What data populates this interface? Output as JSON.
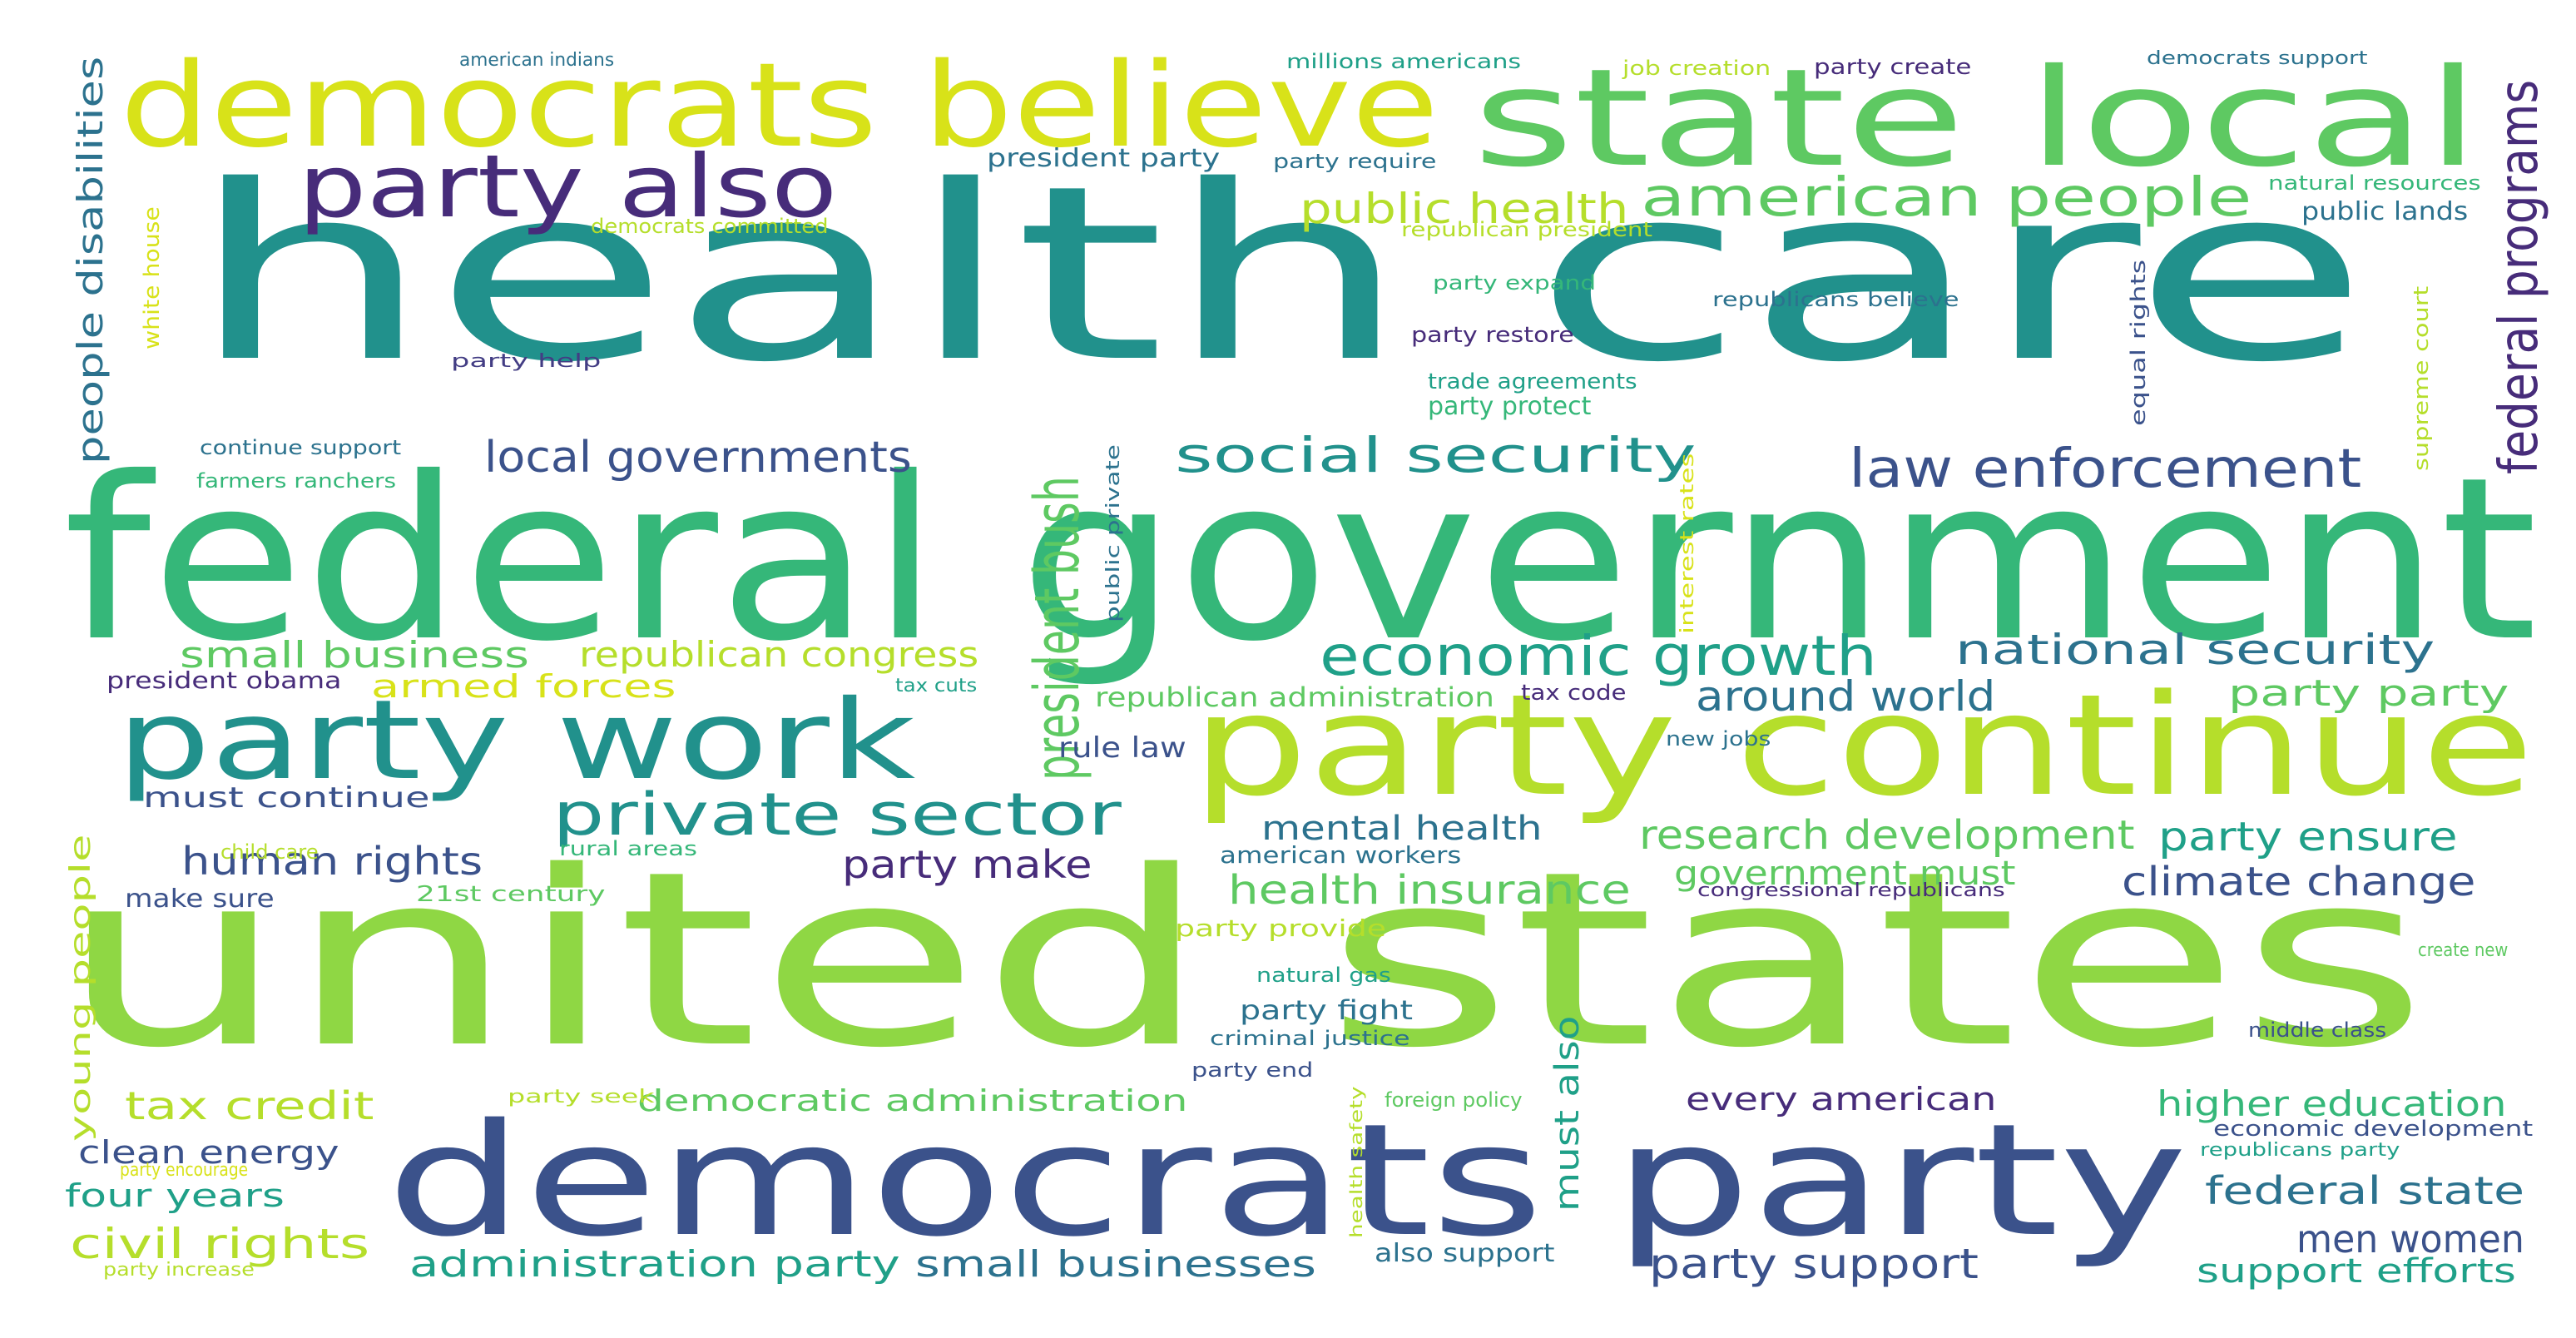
{
  "palette": {
    "background": "#ffffff",
    "dark_purple": "#472c7a",
    "purple": "#433d84",
    "indigo": "#3b528b",
    "blue_teal": "#2c728e",
    "teal": "#21918c",
    "teal_green": "#1fa088",
    "green": "#35b779",
    "light_green": "#5ec962",
    "lime": "#8fd744",
    "yellow_green": "#b5de2b",
    "yellow": "#d8e219"
  },
  "words": [
    {
      "text": "health care",
      "color": "#21918c"
    },
    {
      "text": "united states",
      "color": "#8fd744"
    },
    {
      "text": "federal government",
      "color": "#35b779"
    },
    {
      "text": "democrats party",
      "color": "#3b528b"
    },
    {
      "text": "party continue",
      "color": "#b5de2b"
    },
    {
      "text": "democrats believe",
      "color": "#d8e219"
    },
    {
      "text": "state local",
      "color": "#5ec962"
    },
    {
      "text": "party work",
      "color": "#21918c"
    },
    {
      "text": "party also",
      "color": "#472c7a"
    },
    {
      "text": "american people",
      "color": "#5ec962"
    },
    {
      "text": "private sector",
      "color": "#21918c"
    },
    {
      "text": "economic growth",
      "color": "#1fa088"
    },
    {
      "text": "social security",
      "color": "#21918c"
    },
    {
      "text": "law enforcement",
      "color": "#3b528b"
    },
    {
      "text": "public health",
      "color": "#b5de2b"
    },
    {
      "text": "national security",
      "color": "#2c728e"
    },
    {
      "text": "president bush",
      "color": "#5ec962"
    },
    {
      "text": "federal programs",
      "color": "#472c7a"
    },
    {
      "text": "local governments",
      "color": "#3b528b"
    },
    {
      "text": "small business",
      "color": "#5ec962"
    },
    {
      "text": "republican congress",
      "color": "#b5de2b"
    },
    {
      "text": "around world",
      "color": "#2c728e"
    },
    {
      "text": "party party",
      "color": "#5ec962"
    },
    {
      "text": "people disabilities",
      "color": "#2c728e"
    },
    {
      "text": "research development",
      "color": "#5ec962"
    },
    {
      "text": "party ensure",
      "color": "#1fa088"
    },
    {
      "text": "human rights",
      "color": "#3b528b"
    },
    {
      "text": "party make",
      "color": "#472c7a"
    },
    {
      "text": "climate change",
      "color": "#3b528b"
    },
    {
      "text": "mental health",
      "color": "#2c728e"
    },
    {
      "text": "health insurance",
      "color": "#5ec962"
    },
    {
      "text": "government must",
      "color": "#5ec962"
    },
    {
      "text": "tax credit",
      "color": "#b5de2b"
    },
    {
      "text": "democratic administration",
      "color": "#5ec962"
    },
    {
      "text": "every american",
      "color": "#472c7a"
    },
    {
      "text": "higher education",
      "color": "#35b779"
    },
    {
      "text": "clean energy",
      "color": "#3b528b"
    },
    {
      "text": "four years",
      "color": "#1fa088"
    },
    {
      "text": "civil rights",
      "color": "#b5de2b"
    },
    {
      "text": "federal state",
      "color": "#2c728e"
    },
    {
      "text": "men women",
      "color": "#3b528b"
    },
    {
      "text": "administration party",
      "color": "#1fa088"
    },
    {
      "text": "small businesses",
      "color": "#2c728e"
    },
    {
      "text": "party support",
      "color": "#3b528b"
    },
    {
      "text": "support efforts",
      "color": "#1fa088"
    },
    {
      "text": "must continue",
      "color": "#3b528b"
    },
    {
      "text": "armed forces",
      "color": "#d8e219"
    },
    {
      "text": "young people",
      "color": "#b5de2b"
    },
    {
      "text": "must also",
      "color": "#1fa088"
    },
    {
      "text": "rule law",
      "color": "#3b528b"
    },
    {
      "text": "president obama",
      "color": "#472c7a"
    },
    {
      "text": "president party",
      "color": "#2c728e"
    },
    {
      "text": "make sure",
      "color": "#3b528b"
    },
    {
      "text": "21st century",
      "color": "#5ec962"
    },
    {
      "text": "party provide",
      "color": "#b5de2b"
    },
    {
      "text": "party fight",
      "color": "#2c728e"
    },
    {
      "text": "economic development",
      "color": "#3b528b"
    },
    {
      "text": "public lands",
      "color": "#2c728e"
    },
    {
      "text": "also support",
      "color": "#2c728e"
    },
    {
      "text": "american workers",
      "color": "#2c728e"
    },
    {
      "text": "republican administration",
      "color": "#5ec962"
    },
    {
      "text": "party protect",
      "color": "#35b779"
    },
    {
      "text": "american indians",
      "color": "#2c728e"
    },
    {
      "text": "millions americans",
      "color": "#1fa088"
    },
    {
      "text": "job creation",
      "color": "#b5de2b"
    },
    {
      "text": "party create",
      "color": "#472c7a"
    },
    {
      "text": "democrats support",
      "color": "#2c728e"
    },
    {
      "text": "party require",
      "color": "#2c728e"
    },
    {
      "text": "natural resources",
      "color": "#35b779"
    },
    {
      "text": "democrats committed",
      "color": "#b5de2b"
    },
    {
      "text": "republican president",
      "color": "#b5de2b"
    },
    {
      "text": "white house",
      "color": "#d8e219"
    },
    {
      "text": "party expand",
      "color": "#35b779"
    },
    {
      "text": "republicans believe",
      "color": "#2c728e"
    },
    {
      "text": "equal rights",
      "color": "#3b528b"
    },
    {
      "text": "supreme court",
      "color": "#b5de2b"
    },
    {
      "text": "party restore",
      "color": "#472c7a"
    },
    {
      "text": "party help",
      "color": "#433d84"
    },
    {
      "text": "trade agreements",
      "color": "#1fa088"
    },
    {
      "text": "continue support",
      "color": "#2c728e"
    },
    {
      "text": "farmers ranchers",
      "color": "#35b779"
    },
    {
      "text": "public private",
      "color": "#2c728e"
    },
    {
      "text": "interest rates",
      "color": "#d8e219"
    },
    {
      "text": "tax cuts",
      "color": "#1fa088"
    },
    {
      "text": "tax code",
      "color": "#472c7a"
    },
    {
      "text": "new jobs",
      "color": "#2c728e"
    },
    {
      "text": "child care",
      "color": "#b5de2b"
    },
    {
      "text": "rural areas",
      "color": "#35b779"
    },
    {
      "text": "congressional republicans",
      "color": "#472c7a"
    },
    {
      "text": "create new",
      "color": "#5ec962"
    },
    {
      "text": "natural gas",
      "color": "#1fa088"
    },
    {
      "text": "criminal justice",
      "color": "#2c728e"
    },
    {
      "text": "middle class",
      "color": "#3b528b"
    },
    {
      "text": "party end",
      "color": "#3b528b"
    },
    {
      "text": "health safety",
      "color": "#b5de2b"
    },
    {
      "text": "foreign policy",
      "color": "#5ec962"
    },
    {
      "text": "party seek",
      "color": "#b5de2b"
    },
    {
      "text": "party encourage",
      "color": "#d8e219"
    },
    {
      "text": "republicans party",
      "color": "#1fa088"
    },
    {
      "text": "party increase",
      "color": "#b5de2b"
    }
  ]
}
